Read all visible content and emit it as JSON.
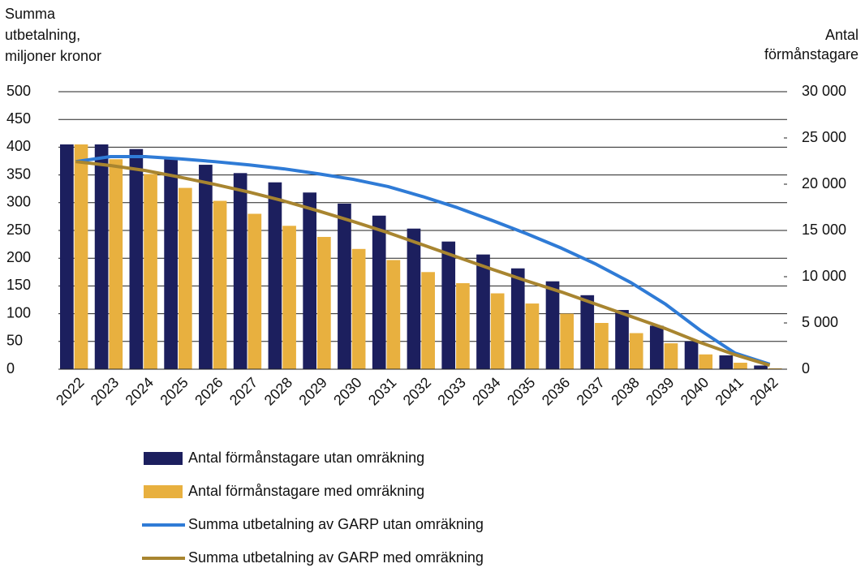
{
  "chart_data": {
    "type": "bar",
    "y_label": [
      "Summa",
      "utbetalning,",
      "miljoner kronor"
    ],
    "y2_label": [
      "Antal",
      "förmånstagare"
    ],
    "categories": [
      "2022",
      "2023",
      "2024",
      "2025",
      "2026",
      "2027",
      "2028",
      "2029",
      "2030",
      "2031",
      "2032",
      "2033",
      "2034",
      "2035",
      "2036",
      "2037",
      "2038",
      "2039",
      "2040",
      "2041",
      "2042"
    ],
    "ylim": [
      0,
      500
    ],
    "yticks": [
      0,
      50,
      100,
      150,
      200,
      250,
      300,
      350,
      400,
      450,
      500
    ],
    "y2lim": [
      0,
      30000
    ],
    "y2ticks": [
      0,
      {
        "value": 5000,
        "label": "5 000"
      },
      {
        "value": 10000,
        "label": "10 000"
      },
      {
        "value": 15000,
        "label": "15 000"
      },
      {
        "value": 20000,
        "label": "20 000"
      },
      {
        "value": 25000,
        "label": "25 000"
      },
      {
        "value": 30000,
        "label": "30 000"
      }
    ],
    "grid": true,
    "series": [
      {
        "name": "Antal förmånstagare utan omräkning",
        "type": "bar",
        "axis": "y2",
        "color": "#1c1f5e",
        "values": [
          24300,
          24300,
          23800,
          22900,
          22100,
          21200,
          20200,
          19100,
          17900,
          16600,
          15200,
          13800,
          12400,
          10900,
          9500,
          8000,
          6400,
          4700,
          3000,
          1500,
          400
        ]
      },
      {
        "name": "Antal förmånstagare med omräkning",
        "type": "bar",
        "axis": "y2",
        "color": "#e8b03f",
        "values": [
          24300,
          22700,
          21100,
          19600,
          18200,
          16800,
          15500,
          14300,
          13000,
          11800,
          10500,
          9300,
          8200,
          7100,
          6000,
          5000,
          3900,
          2800,
          1600,
          700,
          100
        ]
      },
      {
        "name": "Summa utbetalning av GARP utan omräkning",
        "type": "line",
        "color": "#2f7bd6",
        "values": [
          374,
          383,
          383,
          379,
          374,
          368,
          361,
          352,
          342,
          329,
          311,
          291,
          268,
          244,
          218,
          189,
          156,
          117,
          70,
          29,
          9
        ]
      },
      {
        "name": "Summa utbetalning av GARP med omräkning",
        "type": "line",
        "color": "#a88530",
        "values": [
          374,
          367,
          358,
          346,
          333,
          319,
          303,
          285,
          266,
          246,
          224,
          202,
          180,
          159,
          139,
          117,
          95,
          73,
          48,
          26,
          7
        ]
      }
    ]
  }
}
